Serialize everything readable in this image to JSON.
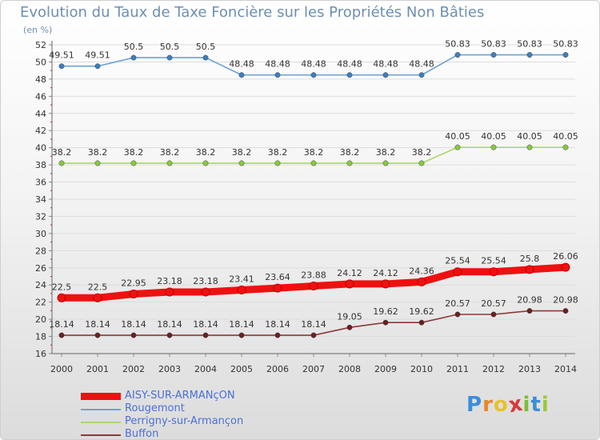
{
  "header": {
    "title": "Evolution du Taux de Taxe Foncière sur les Propriétés Non Bâties",
    "subtitle": "(en %)"
  },
  "logo": {
    "letters": [
      "P",
      "r",
      "o",
      "x",
      "i",
      "t",
      "i"
    ],
    "colors": [
      "#3b8ed8",
      "#e8862a",
      "#e8c22a",
      "#d9383a",
      "#7cbd3a",
      "#3b8ed8",
      "#9ac93a"
    ]
  },
  "colors": {
    "axis_text": "#333333",
    "grid": "#dddddd",
    "axis_tick": "#c0282c"
  },
  "chart_data": {
    "type": "line",
    "x": [
      "2000",
      "2001",
      "2002",
      "2003",
      "2004",
      "2005",
      "2006",
      "2007",
      "2008",
      "2009",
      "2010",
      "2011",
      "2012",
      "2013",
      "2014"
    ],
    "ylim": [
      16,
      52
    ],
    "yticks": [
      16,
      18,
      20,
      22,
      24,
      26,
      28,
      30,
      32,
      34,
      36,
      38,
      40,
      42,
      44,
      46,
      48,
      50,
      52
    ],
    "grid": "horizontal",
    "legend_position": "bottom-left",
    "series": [
      {
        "name": "AISY-SUR-ARMANçON",
        "color": "#ee1111",
        "marker_color": "#ee1111",
        "thick": true,
        "values": [
          22.5,
          22.5,
          22.95,
          23.18,
          23.18,
          23.41,
          23.64,
          23.88,
          24.12,
          24.12,
          24.36,
          25.54,
          25.54,
          25.8,
          26.06
        ],
        "labels": [
          "22.5",
          "22.5",
          "22.95",
          "23.18",
          "23.18",
          "23.41",
          "23.64",
          "23.88",
          "24.12",
          "24.12",
          "24.36",
          "25.54",
          "25.54",
          "25.8",
          "26.06"
        ]
      },
      {
        "name": "Rougemont",
        "color": "#6fa1d2",
        "marker_color": "#3c7fc1",
        "thick": false,
        "values": [
          49.51,
          49.51,
          50.5,
          50.5,
          50.5,
          48.48,
          48.48,
          48.48,
          48.48,
          48.48,
          48.48,
          50.83,
          50.83,
          50.83,
          50.83
        ],
        "labels": [
          "49.51",
          "49.51",
          "50.5",
          "50.5",
          "50.5",
          "48.48",
          "48.48",
          "48.48",
          "48.48",
          "48.48",
          "48.48",
          "50.83",
          "50.83",
          "50.83",
          "50.83"
        ]
      },
      {
        "name": "Perrigny-sur-Armançon",
        "color": "#a8d86e",
        "marker_color": "#88c83d",
        "thick": false,
        "values": [
          38.2,
          38.2,
          38.2,
          38.2,
          38.2,
          38.2,
          38.2,
          38.2,
          38.2,
          38.2,
          38.2,
          40.05,
          40.05,
          40.05,
          40.05
        ],
        "labels": [
          "38.2",
          "38.2",
          "38.2",
          "38.2",
          "38.2",
          "38.2",
          "38.2",
          "38.2",
          "38.2",
          "38.2",
          "38.2",
          "40.05",
          "40.05",
          "40.05",
          "40.05"
        ]
      },
      {
        "name": "Buffon",
        "color": "#8a3a3a",
        "marker_color": "#6b1f1f",
        "thick": false,
        "values": [
          18.14,
          18.14,
          18.14,
          18.14,
          18.14,
          18.14,
          18.14,
          18.14,
          19.05,
          19.62,
          19.62,
          20.57,
          20.57,
          20.98,
          20.98
        ],
        "labels": [
          "18.14",
          "18.14",
          "18.14",
          "18.14",
          "18.14",
          "18.14",
          "18.14",
          "18.14",
          "19.05",
          "19.62",
          "19.62",
          "20.57",
          "20.57",
          "20.98",
          "20.98"
        ]
      }
    ]
  }
}
